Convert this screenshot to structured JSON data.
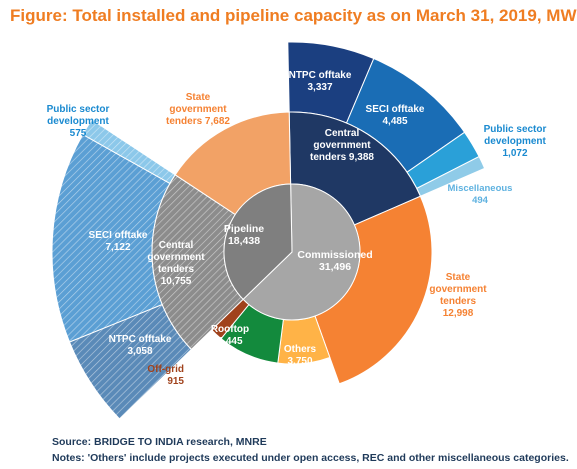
{
  "title": "Figure: Total installed and pipeline capacity as on March 31, 2019, MW",
  "source": "Source: BRIDGE TO INDIA research, MNRE",
  "notes": "Notes: 'Others' include projects executed under open access, REC and other miscellaneous categories.",
  "chart_data": {
    "type": "sunburst",
    "unit": "MW",
    "inner": [
      {
        "name": "Pipeline",
        "value": 18438,
        "color": "#7f7f7f"
      },
      {
        "name": "Commissioned",
        "value": 31496,
        "color": "#a6a6a6"
      }
    ],
    "middle": [
      {
        "parent": "Commissioned",
        "name": "Central government tenders",
        "value": 9388,
        "color": "#1f3864"
      },
      {
        "parent": "Commissioned",
        "name": "State government tenders",
        "value": 12998,
        "color": "#f58233"
      },
      {
        "parent": "Commissioned",
        "name": "Others",
        "value": 3750,
        "color": "#ffb347"
      },
      {
        "parent": "Commissioned",
        "name": "Rooftop",
        "value": 4445,
        "color": "#138a3d"
      },
      {
        "parent": "Commissioned",
        "name": "Off-grid",
        "value": 915,
        "color": "#a0421c"
      },
      {
        "parent": "Pipeline",
        "name": "Central government tenders",
        "value": 10755,
        "color": "#8c8c8c",
        "hatched": true
      },
      {
        "parent": "Pipeline",
        "name": "State government tenders",
        "value": 7682,
        "color": "#f2a266"
      }
    ],
    "outer": [
      {
        "parent": "Commissioned / Central government tenders",
        "name": "NTPC offtake",
        "value": 3337,
        "color": "#1b3f80"
      },
      {
        "parent": "Commissioned / Central government tenders",
        "name": "SECI offtake",
        "value": 4485,
        "color": "#1a6db5"
      },
      {
        "parent": "Commissioned / Central government tenders",
        "name": "Public sector development",
        "value": 1072,
        "color": "#2aa0d8"
      },
      {
        "parent": "Commissioned / Central government tenders",
        "name": "Miscellaneous",
        "value": 494,
        "color": "#8fcbe8"
      },
      {
        "parent": "Pipeline / Central government tenders",
        "name": "NTPC offtake",
        "value": 3058,
        "color": "#5a8ab8",
        "hatched": true
      },
      {
        "parent": "Pipeline / Central government tenders",
        "name": "SECI offtake",
        "value": 7122,
        "color": "#5b9fd4",
        "hatched": true
      },
      {
        "parent": "Pipeline / Central government tenders",
        "name": "Public sector development",
        "value": 575,
        "color": "#8cc8ea",
        "hatched": true
      }
    ],
    "labels": [
      {
        "id": "pipeline",
        "lines": [
          "Pipeline",
          "18,438"
        ],
        "color": "#ffffff"
      },
      {
        "id": "commissioned",
        "lines": [
          "Commissioned",
          "31,496"
        ],
        "color": "#ffffff"
      },
      {
        "id": "comm-central",
        "lines": [
          "Central",
          "government",
          "tenders 9,388"
        ],
        "color": "#ffffff"
      },
      {
        "id": "comm-state",
        "lines": [
          "State",
          "government",
          "tenders",
          "12,998"
        ],
        "color": "#f58233"
      },
      {
        "id": "comm-others",
        "lines": [
          "Others",
          "3,750"
        ],
        "color": "#ffffff"
      },
      {
        "id": "comm-rooftop",
        "lines": [
          "Rooftop",
          "4,445"
        ],
        "color": "#ffffff"
      },
      {
        "id": "comm-offgrid",
        "lines": [
          "Off-grid",
          "915"
        ],
        "color": "#a0421c"
      },
      {
        "id": "pipe-central",
        "lines": [
          "Central",
          "government",
          "tenders",
          "10,755"
        ],
        "color": "#ffffff"
      },
      {
        "id": "pipe-state",
        "lines": [
          "State",
          "government",
          "tenders 7,682"
        ],
        "color": "#f58233"
      },
      {
        "id": "comm-ntpc",
        "lines": [
          "NTPC offtake",
          "3,337"
        ],
        "color": "#ffffff"
      },
      {
        "id": "comm-seci",
        "lines": [
          "SECI offtake",
          "4,485"
        ],
        "color": "#ffffff"
      },
      {
        "id": "comm-psd",
        "lines": [
          "Public sector",
          "development",
          "1,072"
        ],
        "color": "#1a8ad0"
      },
      {
        "id": "comm-misc",
        "lines": [
          "Miscellaneous",
          "494"
        ],
        "color": "#5fb2e0"
      },
      {
        "id": "pipe-ntpc",
        "lines": [
          "NTPC offtake",
          "3,058"
        ],
        "color": "#ffffff"
      },
      {
        "id": "pipe-seci",
        "lines": [
          "SECI offtake",
          "7,122"
        ],
        "color": "#ffffff"
      },
      {
        "id": "pipe-psd",
        "lines": [
          "Public sector",
          "development",
          "575"
        ],
        "color": "#1a8ad0"
      }
    ]
  }
}
